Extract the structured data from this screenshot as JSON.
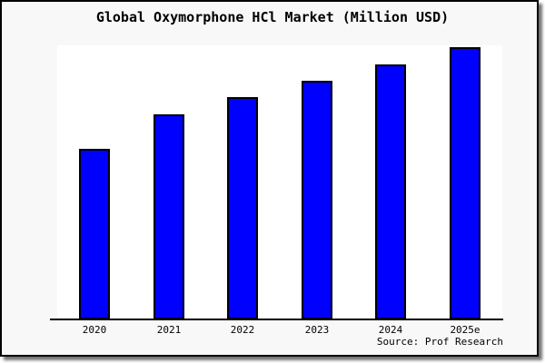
{
  "chart_data": {
    "type": "bar",
    "title": "Global Oxymorphone HCl Market (Million USD)",
    "categories": [
      "2020",
      "2021",
      "2022",
      "2023",
      "2024",
      "2025e"
    ],
    "values": [
      188,
      226,
      245,
      263,
      281,
      300
    ],
    "value_note": "no y-axis scale or gridlines visible; values are relative bar heights in pixels",
    "xlabel": "",
    "ylabel": "",
    "y_axis_labels_visible": false,
    "grid": false,
    "legend": "none",
    "source": "Source: Prof Research",
    "colors": {
      "bar_fill": "#0000ff",
      "bar_border": "#000000",
      "card_background": "#f8f8f8",
      "plot_background": "#ffffff",
      "axis": "#000000",
      "text": "#000000"
    }
  }
}
